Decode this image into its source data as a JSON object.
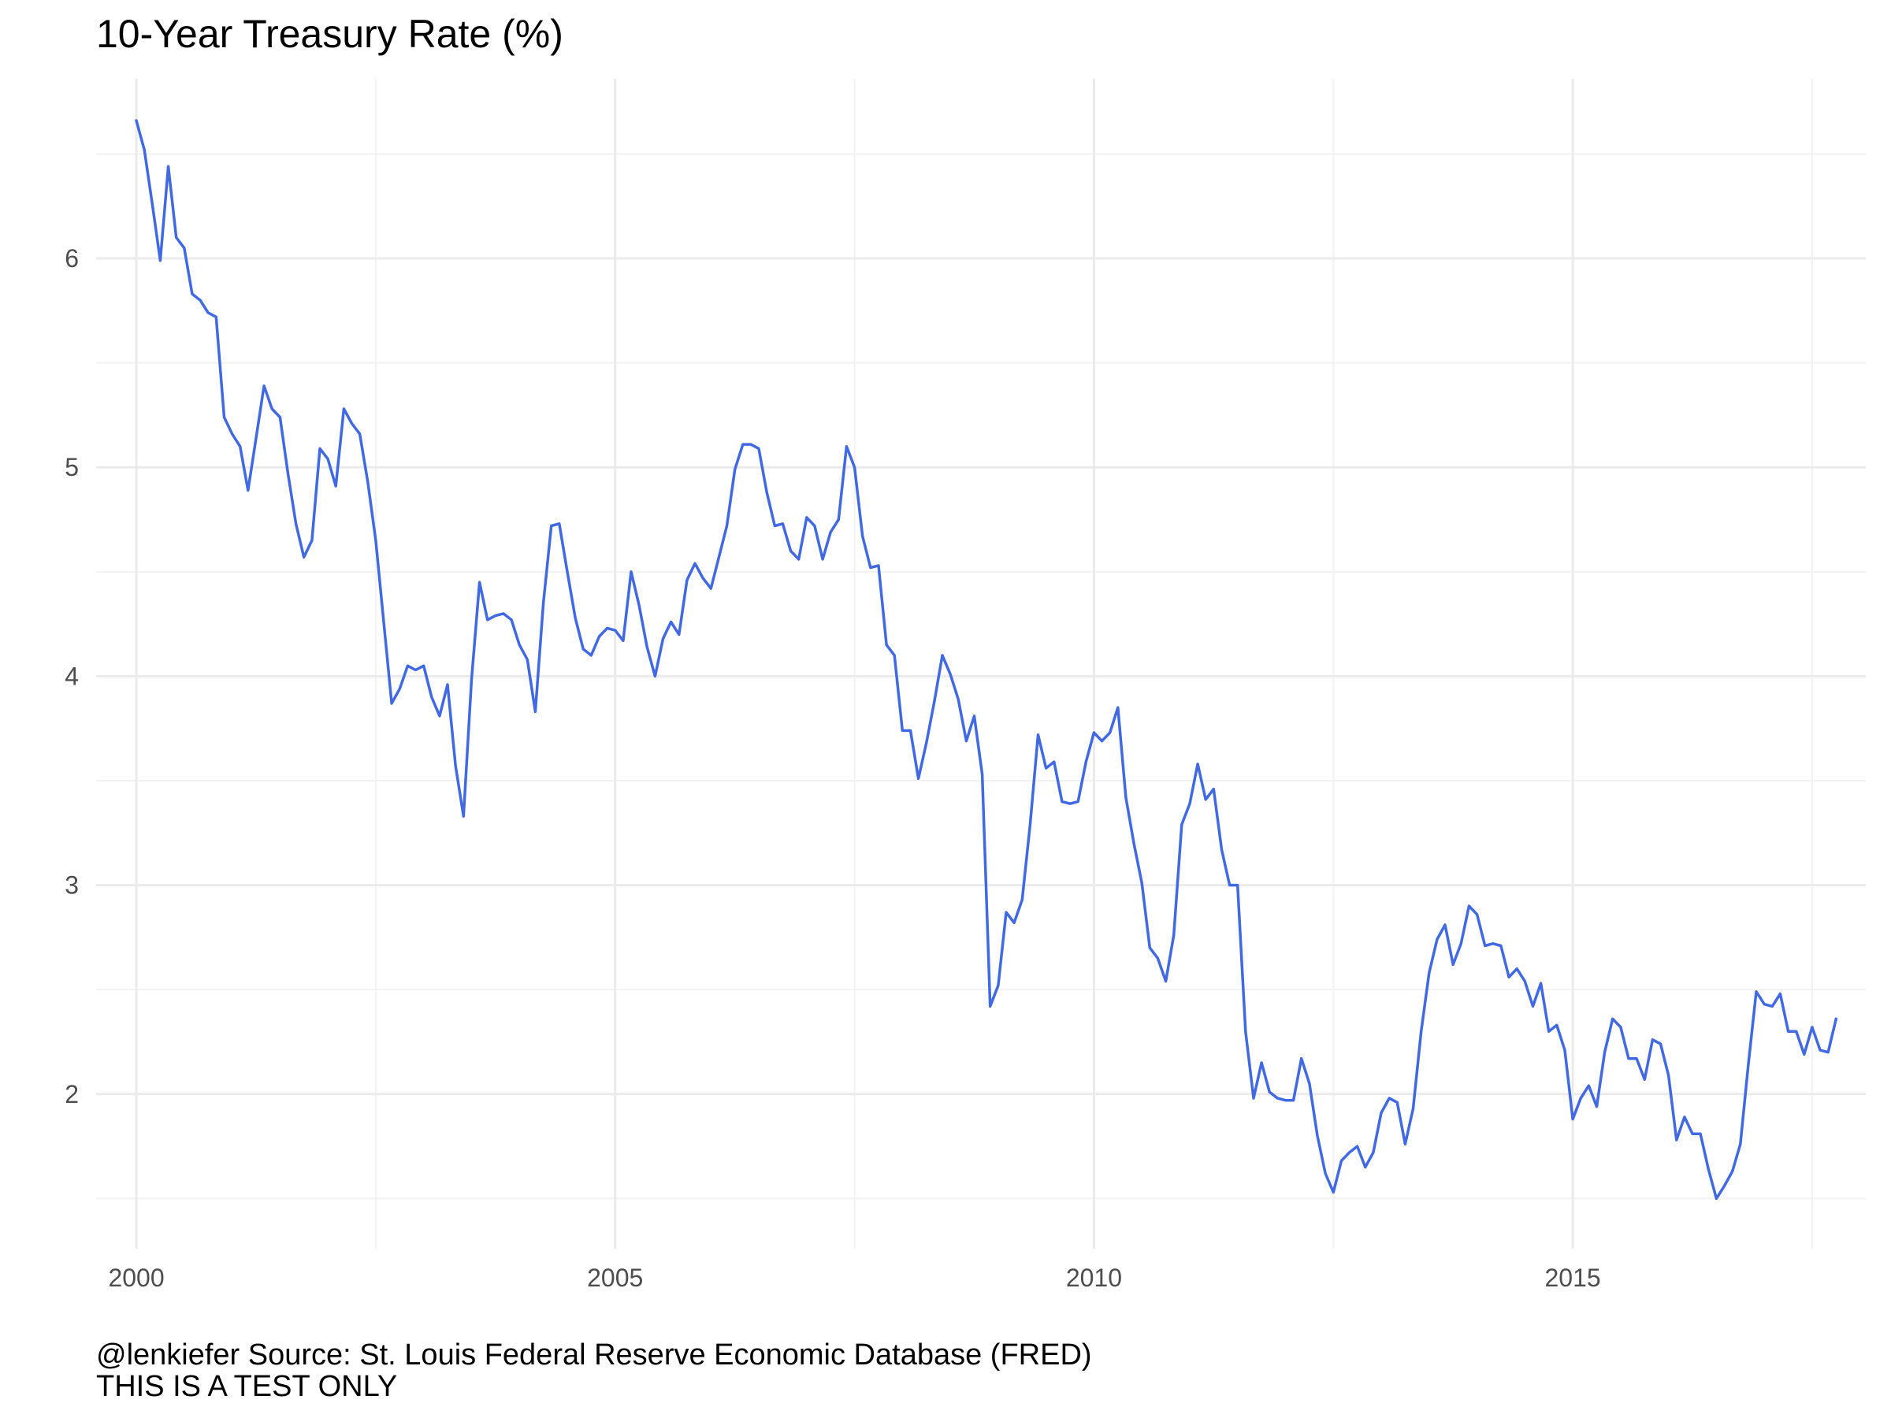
{
  "chart_data": {
    "type": "line",
    "title": "10-Year Treasury Rate (%)",
    "xlabel": "",
    "ylabel": "",
    "caption_line1": "@lenkiefer Source: St. Louis Federal Reserve Economic Database (FRED)",
    "caption_line2": "THIS IS A TEST ONLY",
    "xlim": [
      1999.58,
      2018.06
    ],
    "ylim": [
      1.26,
      6.86
    ],
    "x_ticks": [
      2000,
      2005,
      2010,
      2015
    ],
    "x_tick_labels": [
      "2000",
      "2005",
      "2010",
      "2015"
    ],
    "y_ticks": [
      2,
      3,
      4,
      5,
      6
    ],
    "y_tick_labels": [
      "2",
      "3",
      "4",
      "5",
      "6"
    ],
    "grid": true,
    "line_color": "#4169E1",
    "series": [
      {
        "start": "2000-01",
        "frequency": "monthly",
        "values": [
          6.66,
          6.52,
          6.26,
          5.99,
          6.44,
          6.1,
          6.05,
          5.83,
          5.8,
          5.74,
          5.72,
          5.24,
          5.16,
          5.1,
          4.89,
          5.14,
          5.39,
          5.28,
          5.24,
          4.97,
          4.73,
          4.57,
          4.65,
          5.09,
          5.04,
          4.91,
          5.28,
          5.21,
          5.16,
          4.93,
          4.65,
          4.26,
          3.87,
          3.94,
          4.05,
          4.03,
          4.05,
          3.9,
          3.81,
          3.96,
          3.57,
          3.33,
          3.98,
          4.45,
          4.27,
          4.29,
          4.3,
          4.27,
          4.15,
          4.08,
          3.83,
          4.35,
          4.72,
          4.73,
          4.5,
          4.28,
          4.13,
          4.1,
          4.19,
          4.23,
          4.22,
          4.17,
          4.5,
          4.34,
          4.14,
          4.0,
          4.18,
          4.26,
          4.2,
          4.46,
          4.54,
          4.47,
          4.42,
          4.57,
          4.72,
          4.99,
          5.11,
          5.11,
          5.09,
          4.88,
          4.72,
          4.73,
          4.6,
          4.56,
          4.76,
          4.72,
          4.56,
          4.69,
          4.75,
          5.1,
          5.0,
          4.67,
          4.52,
          4.53,
          4.15,
          4.1,
          3.74,
          3.74,
          3.51,
          3.68,
          3.88,
          4.1,
          4.01,
          3.89,
          3.69,
          3.81,
          3.53,
          2.42,
          2.52,
          2.87,
          2.82,
          2.93,
          3.29,
          3.72,
          3.56,
          3.59,
          3.4,
          3.39,
          3.4,
          3.59,
          3.73,
          3.69,
          3.73,
          3.85,
          3.42,
          3.2,
          3.01,
          2.7,
          2.65,
          2.54,
          2.76,
          3.29,
          3.39,
          3.58,
          3.41,
          3.46,
          3.17,
          3.0,
          3.0,
          2.3,
          1.98,
          2.15,
          2.01,
          1.98,
          1.97,
          1.97,
          2.17,
          2.05,
          1.8,
          1.62,
          1.53,
          1.68,
          1.72,
          1.75,
          1.65,
          1.72,
          1.91,
          1.98,
          1.96,
          1.76,
          1.93,
          2.3,
          2.58,
          2.74,
          2.81,
          2.62,
          2.72,
          2.9,
          2.86,
          2.71,
          2.72,
          2.71,
          2.56,
          2.6,
          2.54,
          2.42,
          2.53,
          2.3,
          2.33,
          2.21,
          1.88,
          1.98,
          2.04,
          1.94,
          2.2,
          2.36,
          2.32,
          2.17,
          2.17,
          2.07,
          2.26,
          2.24,
          2.09,
          1.78,
          1.89,
          1.81,
          1.81,
          1.64,
          1.5,
          1.56,
          1.63,
          1.76,
          2.14,
          2.49,
          2.43,
          2.42,
          2.48,
          2.3,
          2.3,
          2.19,
          2.32,
          2.21,
          2.2,
          2.36
        ]
      }
    ]
  }
}
